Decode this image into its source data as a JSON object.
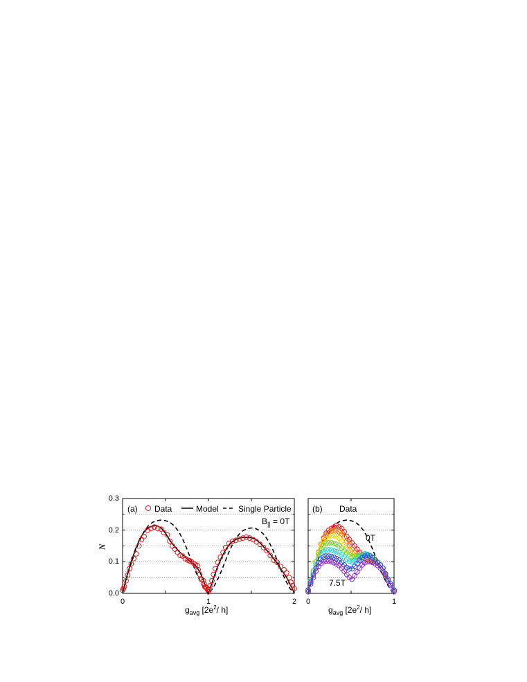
{
  "chart_data": [
    {
      "type": "scatter",
      "panel_label": "(a)",
      "ylabel": "N",
      "xlabel_main": "g",
      "xlabel_sub": "avg",
      "xlabel_units_a": " [2e",
      "xlabel_units_sup": "2",
      "xlabel_units_b": "/ h]",
      "xlim": [
        0,
        2
      ],
      "ylim": [
        0,
        0.3
      ],
      "xticks": [
        "0",
        "1",
        "2"
      ],
      "yticks": [
        "0.0",
        "0.1",
        "0.2",
        "0.3"
      ],
      "grid": "horizontal dotted at 0.05 intervals",
      "annotation_main": "B",
      "annotation_sub": "||",
      "annotation_tail": " = 0T",
      "legend": {
        "placement": "top",
        "data": "Data",
        "model": "Model",
        "single": "Single Particle"
      },
      "series_data": {
        "name": "Data",
        "color": "#e8191c",
        "x": [
          0.0,
          0.01,
          0.02,
          0.04,
          0.06,
          0.08,
          0.1,
          0.13,
          0.16,
          0.19,
          0.22,
          0.25,
          0.29,
          0.33,
          0.37,
          0.41,
          0.45,
          0.48,
          0.52,
          0.55,
          0.58,
          0.61,
          0.64,
          0.67,
          0.7,
          0.73,
          0.76,
          0.78,
          0.8,
          0.83,
          0.85,
          0.87,
          0.88,
          0.9,
          0.92,
          0.94,
          0.95,
          0.96,
          0.97,
          0.98,
          0.99,
          1.0,
          1.01,
          1.02,
          1.04,
          1.06,
          1.08,
          1.11,
          1.14,
          1.17,
          1.2,
          1.24,
          1.28,
          1.32,
          1.36,
          1.4,
          1.44,
          1.48,
          1.52,
          1.56,
          1.6,
          1.64,
          1.68,
          1.72,
          1.76,
          1.8,
          1.84,
          1.88,
          1.91,
          1.94,
          1.96,
          1.98,
          2.0
        ],
        "y": [
          0.01,
          0.015,
          0.022,
          0.04,
          0.058,
          0.078,
          0.093,
          0.11,
          0.125,
          0.15,
          0.17,
          0.18,
          0.2,
          0.205,
          0.21,
          0.205,
          0.203,
          0.192,
          0.185,
          0.165,
          0.15,
          0.14,
          0.13,
          0.12,
          0.118,
          0.11,
          0.105,
          0.103,
          0.1,
          0.095,
          0.09,
          0.088,
          0.075,
          0.06,
          0.045,
          0.04,
          0.03,
          0.02,
          0.02,
          0.018,
          0.012,
          0.005,
          0.012,
          0.025,
          0.04,
          0.06,
          0.078,
          0.098,
          0.115,
          0.13,
          0.145,
          0.158,
          0.165,
          0.168,
          0.172,
          0.175,
          0.178,
          0.175,
          0.17,
          0.163,
          0.155,
          0.145,
          0.135,
          0.12,
          0.105,
          0.098,
          0.085,
          0.075,
          0.065,
          0.05,
          0.035,
          0.025,
          0.015
        ]
      },
      "series_model": {
        "name": "Model",
        "x": [
          0,
          0.05,
          0.1,
          0.15,
          0.2,
          0.25,
          0.3,
          0.35,
          0.4,
          0.45,
          0.5,
          0.55,
          0.6,
          0.65,
          0.7,
          0.75,
          0.8,
          0.85,
          0.9,
          0.95,
          1.0,
          1.05,
          1.1,
          1.15,
          1.2,
          1.25,
          1.3,
          1.35,
          1.4,
          1.45,
          1.5,
          1.55,
          1.6,
          1.65,
          1.7,
          1.75,
          1.8,
          1.85,
          1.9,
          1.95,
          2.0
        ],
        "y": [
          0,
          0.055,
          0.1,
          0.14,
          0.172,
          0.195,
          0.208,
          0.213,
          0.214,
          0.207,
          0.19,
          0.168,
          0.15,
          0.135,
          0.122,
          0.11,
          0.098,
          0.088,
          0.068,
          0.035,
          0,
          0.04,
          0.08,
          0.112,
          0.138,
          0.157,
          0.168,
          0.174,
          0.177,
          0.177,
          0.176,
          0.171,
          0.16,
          0.145,
          0.13,
          0.113,
          0.095,
          0.075,
          0.055,
          0.03,
          0
        ]
      },
      "series_single": {
        "name": "Single Particle",
        "x": [
          0,
          0.05,
          0.1,
          0.15,
          0.2,
          0.25,
          0.3,
          0.35,
          0.4,
          0.45,
          0.5,
          0.55,
          0.6,
          0.65,
          0.7,
          0.75,
          0.8,
          0.85,
          0.9,
          0.95,
          1.0,
          1.05,
          1.1,
          1.15,
          1.2,
          1.25,
          1.3,
          1.35,
          1.4,
          1.45,
          1.5,
          1.55,
          1.6,
          1.65,
          1.7,
          1.75,
          1.8,
          1.85,
          1.9,
          1.95,
          2.0
        ],
        "y": [
          0,
          0.05,
          0.095,
          0.135,
          0.168,
          0.195,
          0.214,
          0.225,
          0.23,
          0.232,
          0.23,
          0.225,
          0.214,
          0.197,
          0.172,
          0.14,
          0.105,
          0.07,
          0.04,
          0.015,
          0,
          0.015,
          0.04,
          0.07,
          0.105,
          0.138,
          0.165,
          0.185,
          0.198,
          0.205,
          0.207,
          0.205,
          0.198,
          0.185,
          0.165,
          0.138,
          0.105,
          0.07,
          0.04,
          0.015,
          0
        ]
      }
    },
    {
      "type": "scatter",
      "panel_label": "(b)",
      "title": "Data",
      "xlabel_main": "g",
      "xlabel_sub": "avg",
      "xlabel_units_a": " [2e",
      "xlabel_units_sup": "2",
      "xlabel_units_b": "/ h]",
      "xlim": [
        0,
        1
      ],
      "ylim": [
        0,
        0.3
      ],
      "xticks": [
        "0",
        "1"
      ],
      "grid": "horizontal dotted at 0.05 intervals",
      "label_top": "0T",
      "label_bottom": "7.5T",
      "x": [
        0,
        0.03,
        0.06,
        0.09,
        0.12,
        0.15,
        0.18,
        0.21,
        0.24,
        0.27,
        0.3,
        0.33,
        0.36,
        0.39,
        0.42,
        0.45,
        0.48,
        0.51,
        0.54,
        0.57,
        0.6,
        0.63,
        0.66,
        0.69,
        0.72,
        0.75,
        0.78,
        0.81,
        0.84,
        0.87,
        0.9,
        0.93,
        0.96,
        1.0
      ],
      "series": [
        {
          "name": "0T",
          "color": "#e8191c",
          "values": [
            0.01,
            0.04,
            0.07,
            0.1,
            0.13,
            0.155,
            0.175,
            0.19,
            0.2,
            0.205,
            0.21,
            0.215,
            0.21,
            0.205,
            0.195,
            0.18,
            0.17,
            0.16,
            0.15,
            0.14,
            0.13,
            0.12,
            0.115,
            0.11,
            0.105,
            0.1,
            0.1,
            0.095,
            0.09,
            0.08,
            0.06,
            0.045,
            0.03,
            0.01
          ]
        },
        {
          "color": "#f57a14",
          "values": [
            0.01,
            0.04,
            0.07,
            0.1,
            0.13,
            0.155,
            0.172,
            0.185,
            0.193,
            0.197,
            0.2,
            0.2,
            0.195,
            0.188,
            0.178,
            0.165,
            0.152,
            0.14,
            0.13,
            0.12,
            0.115,
            0.11,
            0.11,
            0.108,
            0.105,
            0.103,
            0.1,
            0.095,
            0.09,
            0.08,
            0.062,
            0.045,
            0.03,
            0.01
          ]
        },
        {
          "color": "#f2d11a",
          "values": [
            0.01,
            0.04,
            0.07,
            0.1,
            0.128,
            0.15,
            0.165,
            0.175,
            0.18,
            0.182,
            0.183,
            0.18,
            0.175,
            0.165,
            0.155,
            0.145,
            0.135,
            0.125,
            0.118,
            0.113,
            0.113,
            0.115,
            0.115,
            0.113,
            0.11,
            0.105,
            0.1,
            0.095,
            0.09,
            0.08,
            0.062,
            0.045,
            0.03,
            0.01
          ]
        },
        {
          "color": "#7cd33a",
          "values": [
            0.01,
            0.04,
            0.07,
            0.098,
            0.122,
            0.14,
            0.152,
            0.158,
            0.16,
            0.16,
            0.158,
            0.155,
            0.15,
            0.143,
            0.135,
            0.128,
            0.122,
            0.117,
            0.115,
            0.117,
            0.12,
            0.122,
            0.123,
            0.122,
            0.118,
            0.112,
            0.105,
            0.098,
            0.09,
            0.08,
            0.062,
            0.045,
            0.03,
            0.01
          ]
        },
        {
          "color": "#2ed3d3",
          "values": [
            0.01,
            0.038,
            0.065,
            0.09,
            0.11,
            0.125,
            0.133,
            0.137,
            0.138,
            0.137,
            0.135,
            0.132,
            0.128,
            0.122,
            0.115,
            0.108,
            0.102,
            0.1,
            0.103,
            0.11,
            0.118,
            0.123,
            0.125,
            0.124,
            0.12,
            0.114,
            0.106,
            0.098,
            0.09,
            0.08,
            0.062,
            0.045,
            0.03,
            0.01
          ]
        },
        {
          "color": "#2b4fd8",
          "values": [
            0.01,
            0.035,
            0.058,
            0.08,
            0.097,
            0.108,
            0.115,
            0.118,
            0.118,
            0.117,
            0.114,
            0.11,
            0.105,
            0.098,
            0.09,
            0.082,
            0.077,
            0.078,
            0.085,
            0.095,
            0.105,
            0.113,
            0.118,
            0.12,
            0.118,
            0.113,
            0.106,
            0.098,
            0.09,
            0.08,
            0.062,
            0.045,
            0.03,
            0.01
          ]
        },
        {
          "name": "7.5T",
          "color": "#8a2bc7",
          "values": [
            0.005,
            0.03,
            0.05,
            0.07,
            0.085,
            0.095,
            0.1,
            0.102,
            0.102,
            0.1,
            0.097,
            0.093,
            0.088,
            0.08,
            0.07,
            0.06,
            0.05,
            0.045,
            0.055,
            0.068,
            0.08,
            0.09,
            0.097,
            0.1,
            0.1,
            0.098,
            0.094,
            0.088,
            0.08,
            0.07,
            0.055,
            0.04,
            0.025,
            0.005
          ]
        }
      ],
      "single_particle": {
        "x": [
          0,
          0.05,
          0.1,
          0.15,
          0.2,
          0.25,
          0.3,
          0.35,
          0.4,
          0.45,
          0.5,
          0.55,
          0.6,
          0.65,
          0.7,
          0.75,
          0.8,
          0.85,
          0.9,
          0.95,
          1.0
        ],
        "y": [
          0,
          0.05,
          0.095,
          0.135,
          0.168,
          0.195,
          0.214,
          0.225,
          0.23,
          0.232,
          0.23,
          0.225,
          0.214,
          0.197,
          0.172,
          0.14,
          0.105,
          0.07,
          0.04,
          0.015,
          0
        ]
      }
    }
  ]
}
